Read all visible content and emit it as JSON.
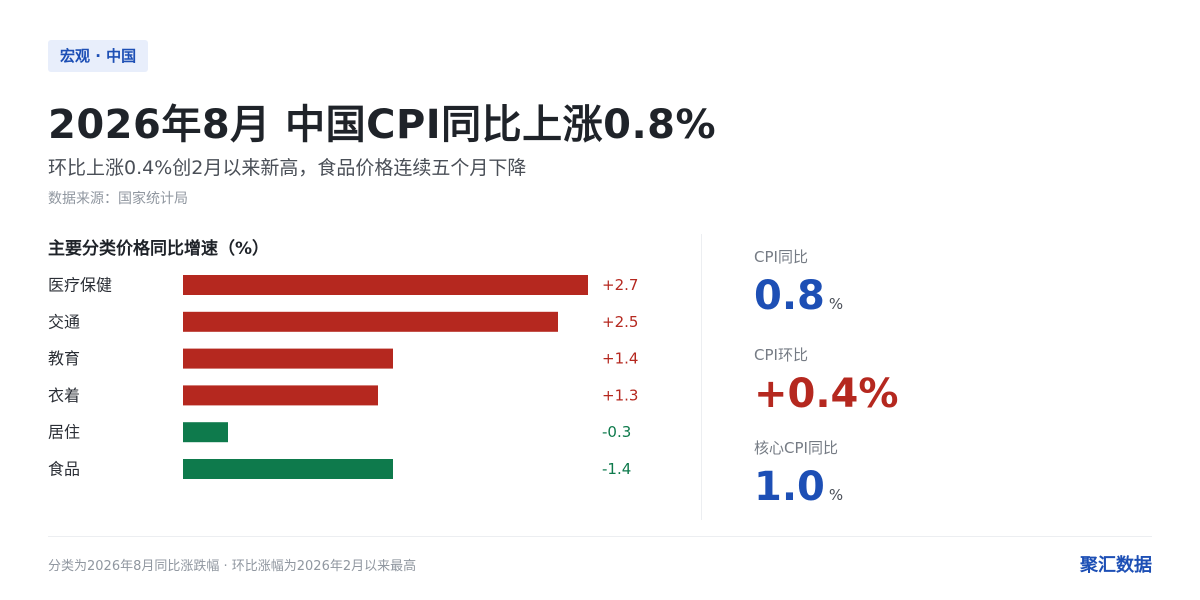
{
  "tag": "宏观 · 中国",
  "title": "2026年8月 中国CPI同比上涨0.8%",
  "subtitle": "环比上涨0.4%创2月以来新高，食品价格连续五个月下降",
  "source": "数据来源：国家统计局",
  "kpis": [
    {
      "label": "CPI同比",
      "value": "0.8",
      "unit": "%",
      "color": "#1d4fb5"
    },
    {
      "label": "CPI环比",
      "value": "+0.4%",
      "unit": "",
      "color": "#b5281f"
    },
    {
      "label": "核心CPI同比",
      "value": "1.0",
      "unit": "%",
      "color": "#1d4fb5"
    }
  ],
  "footnote": "分类为2026年8月同比涨跌幅 · 环比涨幅为2026年2月以来最高",
  "brand": "聚汇数据",
  "chart_data": {
    "type": "bar",
    "orientation": "horizontal",
    "title": "主要分类价格同比增速（%）",
    "categories": [
      "医疗保健",
      "交通",
      "教育",
      "衣着",
      "居住",
      "食品"
    ],
    "values": [
      2.7,
      2.5,
      1.4,
      1.3,
      -0.3,
      -1.4
    ],
    "labels": [
      "+2.7",
      "+2.5",
      "+1.4",
      "+1.3",
      "-0.3",
      "-1.4"
    ],
    "bar_length": "absolute value",
    "colors": {
      "positive": "#b5281f",
      "negative": "#0e7a4c"
    },
    "grid": false,
    "legend": "none"
  }
}
